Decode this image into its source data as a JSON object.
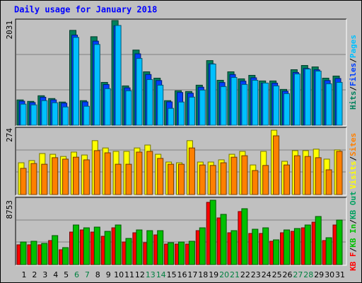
{
  "title": "Daily usage for January 2018",
  "chart_data": [
    {
      "type": "bar",
      "ylim": [
        0,
        2031
      ],
      "yticks": [
        2031
      ],
      "series": [
        {
          "name": "Hits",
          "color": "#00805c",
          "values": [
            491,
            463,
            572,
            518,
            450,
            1840,
            477,
            1717,
            831,
            2031,
            763,
            1458,
            1036,
            913,
            477,
            668,
            654,
            777,
            1254,
            872,
            1036,
            900,
            968,
            859,
            859,
            695,
            1077,
            1159,
            1131,
            913,
            954
          ]
        },
        {
          "name": "Files",
          "color": "#0040ff",
          "values": [
            466,
            440,
            543,
            492,
            428,
            1748,
            453,
            1631,
            789,
            1929,
            725,
            1385,
            984,
            867,
            453,
            635,
            621,
            738,
            1191,
            828,
            984,
            855,
            920,
            816,
            816,
            660,
            1023,
            1101,
            1074,
            867,
            906
          ]
        },
        {
          "name": "Pages",
          "color": "#00c0ff",
          "values": [
            409,
            395,
            477,
            436,
            354,
            1704,
            368,
            1567,
            709,
            1935,
            668,
            1295,
            886,
            777,
            327,
            450,
            545,
            682,
            1186,
            750,
            927,
            791,
            872,
            818,
            763,
            613,
            995,
            1090,
            1050,
            804,
            831
          ]
        }
      ]
    },
    {
      "type": "bar",
      "ylim": [
        0,
        274
      ],
      "yticks": [
        274
      ],
      "series": [
        {
          "name": "Visits",
          "color": "#ffff00",
          "values": [
            131,
            140,
            169,
            166,
            157,
            175,
            163,
            222,
            192,
            178,
            178,
            192,
            204,
            166,
            134,
            131,
            222,
            134,
            134,
            143,
            166,
            178,
            122,
            178,
            265,
            137,
            181,
            181,
            187,
            146,
            184
          ]
        },
        {
          "name": "Sites",
          "color": "#ff8000",
          "values": [
            108,
            128,
            125,
            152,
            146,
            154,
            143,
            181,
            172,
            125,
            125,
            175,
            178,
            149,
            125,
            125,
            192,
            122,
            120,
            131,
            154,
            160,
            99,
            120,
            242,
            122,
            160,
            157,
            152,
            102,
            178
          ]
        }
      ]
    },
    {
      "type": "bar",
      "ylim": [
        0,
        8753
      ],
      "yticks": [
        8753
      ],
      "series": [
        {
          "name": "KB F",
          "color": "#ff0000",
          "values": [
            2694,
            2694,
            2694,
            3271,
            2020,
            4425,
            4714,
            4425,
            3848,
            5002,
            3078,
            4329,
            2982,
            4040,
            2790,
            2790,
            2790,
            4618,
            8466,
            6349,
            4329,
            7215,
            4233,
            4233,
            3175,
            4329,
            4521,
            5002,
            5772,
            3271,
            5387
          ]
        },
        {
          "name": "KB In",
          "color": "#00c000",
          "values": [
            3078,
            3175,
            2886,
            3944,
            2309,
            5387,
            5002,
            5099,
            4521,
            5387,
            3559,
            4714,
            4618,
            4618,
            2982,
            3078,
            3175,
            5002,
            8753,
            6830,
            4618,
            7600,
            4810,
            5002,
            3367,
            4714,
            4906,
            5387,
            6542,
            3656,
            6061
          ]
        }
      ],
      "legend_only": [
        {
          "name": "KB Out",
          "color": "#00a060"
        }
      ],
      "categories": [
        "1",
        "2",
        "3",
        "4",
        "5",
        "6",
        "7",
        "8",
        "9",
        "10",
        "11",
        "12",
        "13",
        "14",
        "15",
        "16",
        "17",
        "18",
        "19",
        "20",
        "21",
        "22",
        "23",
        "24",
        "25",
        "26",
        "27",
        "28",
        "29",
        "30",
        "31"
      ],
      "weekend_days": [
        5,
        6,
        12,
        13,
        19,
        20,
        26,
        27
      ],
      "weekend_color": "#008040"
    }
  ]
}
